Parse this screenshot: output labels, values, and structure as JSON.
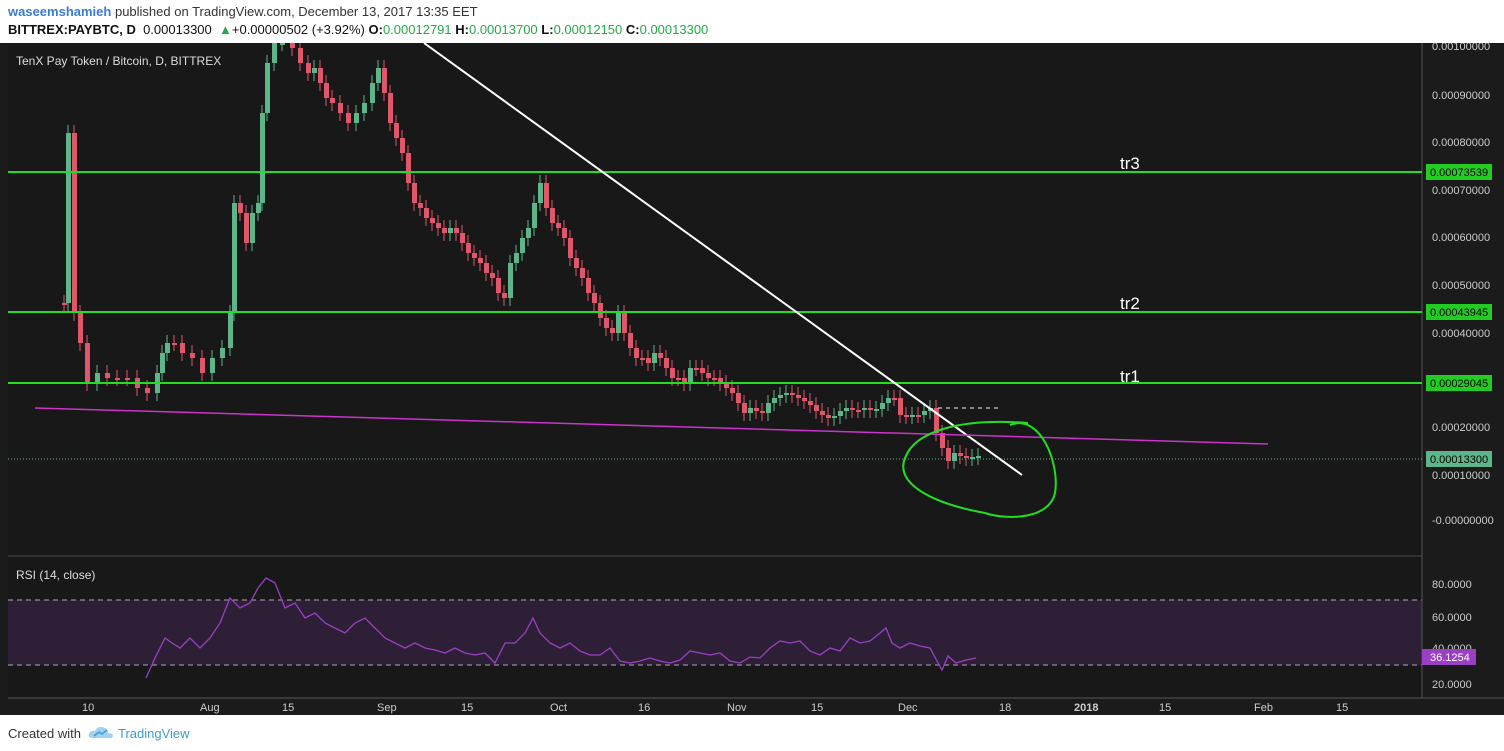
{
  "header": {
    "publisher": "waseemshamieh",
    "published_text": "published on TradingView.com, December 13, 2017 13:35 EET",
    "symbol": "BITTREX:PAYBTC, D",
    "last": "0.00013300",
    "change": "+0.00000502 (+3.92%)",
    "o_label": "O:",
    "o_value": "0.00012791",
    "h_label": "H:",
    "h_value": "0.00013700",
    "l_label": "L:",
    "l_value": "0.00012150",
    "c_label": "C:",
    "c_value": "0.00013300"
  },
  "chart": {
    "legend": "TenX Pay Token / Bitcoin, D, BITTREX",
    "price_ticks": [
      "0.00100000",
      "0.00090000",
      "0.00080000",
      "0.00070000",
      "0.00060000",
      "0.00050000",
      "0.00040000",
      "0.00020000",
      "0.00010000",
      "-0.00000000"
    ],
    "levels": [
      {
        "label": "tr3",
        "value": "0.00073539"
      },
      {
        "label": "tr2",
        "value": "0.00043945"
      },
      {
        "label": "tr1",
        "value": "0.00029045"
      }
    ],
    "current_price_label": "0.00013300",
    "date_ticks": [
      "10",
      "Aug",
      "15",
      "Sep",
      "15",
      "Oct",
      "16",
      "Nov",
      "15",
      "Dec",
      "18",
      "2018",
      "15",
      "Feb",
      "15"
    ],
    "colors": {
      "up": "#5fb58a",
      "down": "#e0576b",
      "level": "#22dd22",
      "trend": "#ffffff",
      "support": "#cc33cc",
      "rsi": "#9b3fc4",
      "bg": "#1b1b1b"
    }
  },
  "rsi": {
    "legend": "RSI (14, close)",
    "ticks": [
      "80.0000",
      "60.0000",
      "40.0000",
      "20.0000"
    ],
    "current_label": "36.1254",
    "upper_band": 70,
    "lower_band": 30
  },
  "footer": {
    "created_with": "Created with",
    "brand": "TradingView"
  }
}
